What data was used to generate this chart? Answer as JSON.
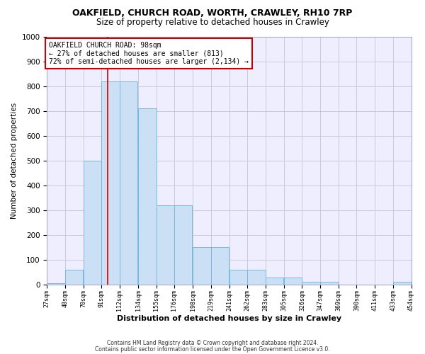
{
  "title1": "OAKFIELD, CHURCH ROAD, WORTH, CRAWLEY, RH10 7RP",
  "title2": "Size of property relative to detached houses in Crawley",
  "xlabel": "Distribution of detached houses by size in Crawley",
  "ylabel": "Number of detached properties",
  "footer1": "Contains HM Land Registry data © Crown copyright and database right 2024.",
  "footer2": "Contains public sector information licensed under the Open Government Licence v3.0.",
  "bar_left_edges": [
    27,
    48,
    70,
    91,
    112,
    134,
    155,
    176,
    198,
    219,
    241,
    262,
    283,
    305,
    326,
    347,
    369,
    390,
    411,
    433
  ],
  "bar_heights": [
    5,
    60,
    500,
    820,
    820,
    710,
    320,
    320,
    150,
    150,
    60,
    60,
    28,
    28,
    12,
    12,
    0,
    0,
    0,
    10
  ],
  "bin_width": 21,
  "bar_color": "#cce0f5",
  "bar_edge_color": "#7ab8d9",
  "ref_line_x": 98,
  "ref_line_color": "#cc0000",
  "annotation_text": "OAKFIELD CHURCH ROAD: 98sqm\n← 27% of detached houses are smaller (813)\n72% of semi-detached houses are larger (2,134) →",
  "annotation_box_color": "#ffffff",
  "annotation_box_edgecolor": "#cc0000",
  "xlim": [
    27,
    454
  ],
  "ylim": [
    0,
    1000
  ],
  "yticks": [
    0,
    100,
    200,
    300,
    400,
    500,
    600,
    700,
    800,
    900,
    1000
  ],
  "xtick_labels": [
    "27sqm",
    "48sqm",
    "70sqm",
    "91sqm",
    "112sqm",
    "134sqm",
    "155sqm",
    "176sqm",
    "198sqm",
    "219sqm",
    "241sqm",
    "262sqm",
    "283sqm",
    "305sqm",
    "326sqm",
    "347sqm",
    "369sqm",
    "390sqm",
    "411sqm",
    "433sqm",
    "454sqm"
  ],
  "xtick_positions": [
    27,
    48,
    70,
    91,
    112,
    134,
    155,
    176,
    198,
    219,
    241,
    262,
    283,
    305,
    326,
    347,
    369,
    390,
    411,
    433,
    454
  ],
  "grid_color": "#c8c8e0",
  "bg_color": "#eeeeff",
  "title1_fontsize": 9,
  "title2_fontsize": 8.5,
  "ylabel_fontsize": 7.5,
  "xlabel_fontsize": 8,
  "footer_fontsize": 5.5,
  "annot_fontsize": 7
}
